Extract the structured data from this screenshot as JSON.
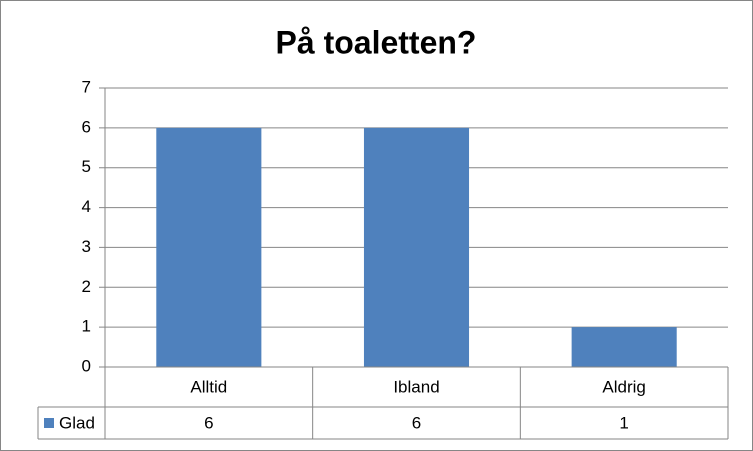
{
  "chart_data": {
    "type": "bar",
    "title": "På toaletten?",
    "categories": [
      "Alltid",
      "Ibland",
      "Aldrig"
    ],
    "series": [
      {
        "name": "Glad",
        "color": "#4f81bd",
        "values": [
          6,
          6,
          1
        ]
      }
    ],
    "ylim": [
      0,
      7
    ],
    "yticks": [
      0,
      1,
      2,
      3,
      4,
      5,
      6,
      7
    ],
    "grid": true,
    "data_table": true
  }
}
